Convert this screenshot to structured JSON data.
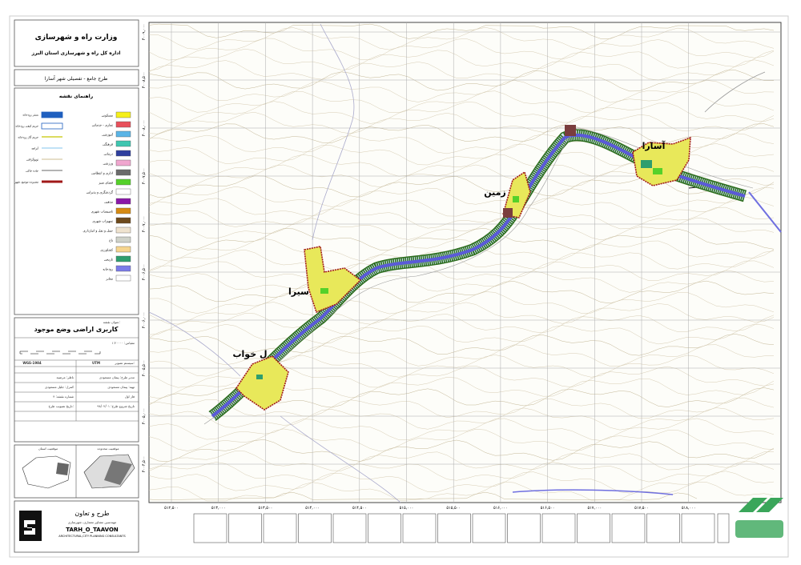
{
  "header": {
    "ministry": "وزارت راه و شهرسازی",
    "office": "اداره کل راه و شهرسازی استان البرز",
    "project": "طرح جامع - تفصیلی شهر آسارا"
  },
  "legend": {
    "title": "راهنمای نقشه",
    "landuse": [
      {
        "label": "مسکونی",
        "color": "#f5ef1a"
      },
      {
        "label": "تجاری - خدماتی",
        "color": "#e8505b"
      },
      {
        "label": "آموزشی",
        "color": "#5ab4e6"
      },
      {
        "label": "فرهنگی",
        "color": "#3fc6b0"
      },
      {
        "label": "درمانی",
        "color": "#2e3f9e"
      },
      {
        "label": "ورزشی",
        "color": "#f0a6cf"
      },
      {
        "label": "اداری و انتظامی",
        "color": "#6b6b6b"
      },
      {
        "label": "فضای سبز",
        "color": "#55d12a"
      },
      {
        "label": "گردشگری و پذیرایی",
        "color": "#ffffff"
      },
      {
        "label": "مذهبی",
        "color": "#8a17a8"
      },
      {
        "label": "تاسیسات شهری",
        "color": "#d68a12"
      },
      {
        "label": "تجهیزات شهری",
        "color": "#6e4a1c"
      },
      {
        "label": "حمل و نقل و انبارداری",
        "color": "#efe3cf"
      },
      {
        "label": "باغ",
        "color": "#cfd2c9"
      },
      {
        "label": "کشاورزی",
        "color": "#f6d58e"
      },
      {
        "label": "تاریخی",
        "color": "#2e9e6e"
      },
      {
        "label": "رودخانه",
        "color": "#7b7be8"
      },
      {
        "label": "معابر",
        "color": "#ffffff"
      }
    ],
    "lines": [
      {
        "label": "بستر رودخانه",
        "color": "#1f5fbf"
      },
      {
        "label": "حریم کیفی رودخانه",
        "color": "#ffffff"
      },
      {
        "label": "حریم گاز رودخانه",
        "color": "#c8c800"
      },
      {
        "label": "آبراهه",
        "color": "#9ad0f0"
      },
      {
        "label": "توپوگرافی",
        "color": "#d8c9a6"
      },
      {
        "label": "جاده خاکی",
        "color": "#888888"
      },
      {
        "label": "محدوده موجود شهر",
        "color": "#a01818"
      }
    ]
  },
  "map_title": {
    "label": "عنوان نقشه:",
    "title": "کاربری اراضی وضع موجود"
  },
  "info": {
    "scale": "مقیاس: ۱:۲۰۰۰۰",
    "datum": "WGS-1984",
    "projection": "UTM",
    "zone_label": "سیستم تصویر:",
    "designer": "مدیر طرح: پیمان مسعودی",
    "manager": "ناظر: مرضیه",
    "drafting": "تهیه: پیمان مسعودی",
    "supervisor": "کنترل: جلیل مسعودی",
    "date": "تاریخ شروع طرح: ۹۸/۰۲/۰۱",
    "approval": "تاریخ تصویب طرح:",
    "sheet": "شماره نقشه: ۴",
    "phase": "فاز اول"
  },
  "key_maps": {
    "left": "موقعیت استان",
    "right": "موقعیت محدوده"
  },
  "places": [
    "آسارا",
    "زمین",
    "سیرا",
    "ل خواب"
  ],
  "axis": {
    "x": [
      "۵۱۲,۵۰۰",
      "۵۱۳,۰۰۰",
      "۵۱۳,۵۰۰",
      "۵۱۴,۰۰۰",
      "۵۱۴,۵۰۰",
      "۵۱۵,۰۰۰",
      "۵۱۵,۵۰۰",
      "۵۱۶,۰۰۰",
      "۵۱۶,۵۰۰",
      "۵۱۷,۰۰۰",
      "۵۱۷,۵۰۰",
      "۵۱۸,۰۰۰"
    ],
    "y": [
      "۴۰۰۹,۰۰۰",
      "۴۰۰۸,۵۰۰",
      "۴۰۰۸,۰۰۰",
      "۴۰۰۷,۵۰۰",
      "۴۰۰۷,۰۰۰",
      "۴۰۰۶,۵۰۰",
      "۴۰۰۶,۰۰۰",
      "۴۰۰۵,۵۰۰",
      "۴۰۰۵,۰۰۰",
      "۴۰۰۴,۵۰۰"
    ]
  },
  "firm": {
    "fa": "طرح و تعاون",
    "sub": "مهندسین مشاور معماری، شهرسازی",
    "en": "TARH_O_TAAVON",
    "en_sub": "ARCHITECTURAL,CITY PLANNING CONSULTANTS"
  }
}
